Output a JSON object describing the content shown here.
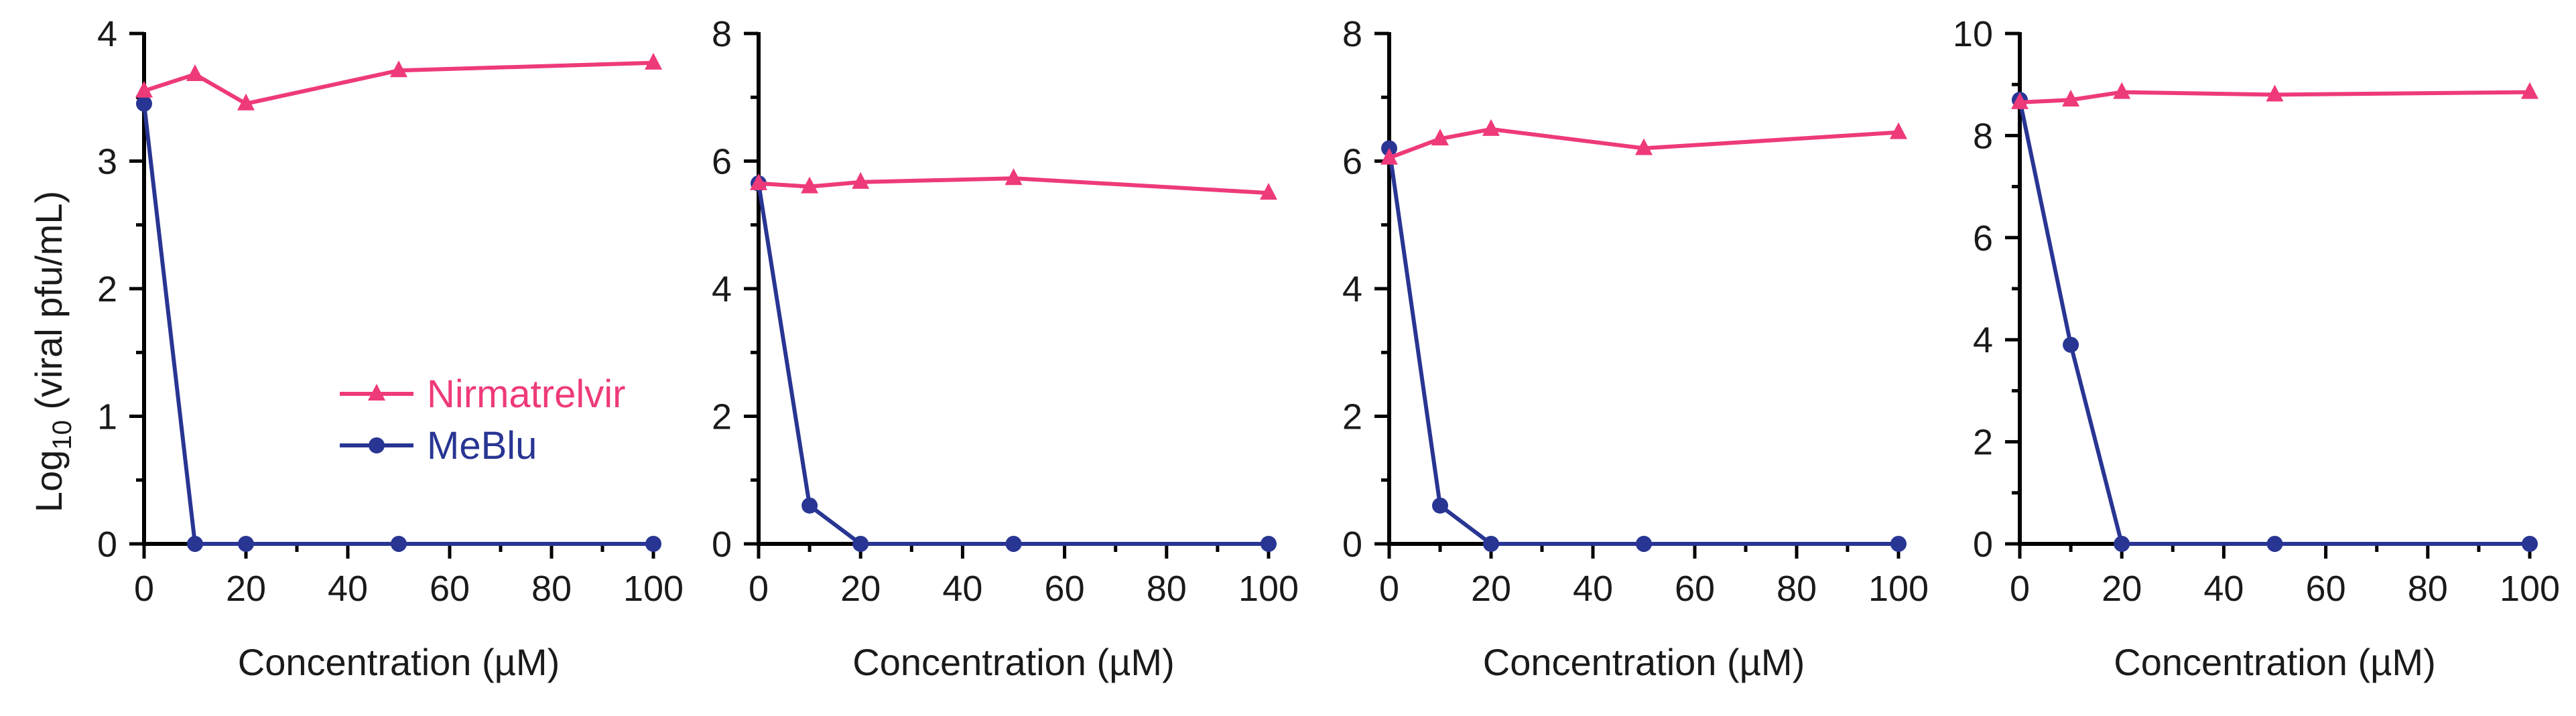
{
  "colors": {
    "nirmatrelvir": "#ee3a7a",
    "mebl": "#283593",
    "axis": "#000000"
  },
  "shared": {
    "ylabel": "Log",
    "ylabel_sub": "10",
    "ylabel_rest": " (viral pfu/mL)",
    "xlabel": "Concentration (µM)",
    "legend": [
      "Nirmatrelvir",
      "MeBlu"
    ]
  },
  "chart_data": [
    {
      "type": "line",
      "xlabel": "Concentration (µM)",
      "ylabel": "Log10 (viral pfu/mL)",
      "xlim": [
        0,
        100
      ],
      "ylim": [
        0,
        4
      ],
      "xticks": [
        0,
        20,
        40,
        60,
        80,
        100
      ],
      "yticks": [
        0,
        1,
        2,
        3,
        4
      ],
      "x": [
        0,
        10,
        20,
        50,
        100
      ],
      "series": [
        {
          "name": "Nirmatrelvir",
          "marker": "triangle",
          "values": [
            3.55,
            3.68,
            3.45,
            3.71,
            3.77
          ]
        },
        {
          "name": "MeBlu",
          "marker": "circle",
          "values": [
            3.45,
            0,
            0,
            0,
            0
          ]
        }
      ]
    },
    {
      "type": "line",
      "xlabel": "Concentration (µM)",
      "xlim": [
        0,
        100
      ],
      "ylim": [
        0,
        8
      ],
      "xticks": [
        0,
        20,
        40,
        60,
        80,
        100
      ],
      "yticks": [
        0,
        2,
        4,
        6,
        8
      ],
      "x": [
        0,
        10,
        20,
        50,
        100
      ],
      "series": [
        {
          "name": "Nirmatrelvir",
          "marker": "triangle",
          "values": [
            5.65,
            5.6,
            5.67,
            5.73,
            5.5
          ]
        },
        {
          "name": "MeBlu",
          "marker": "circle",
          "values": [
            5.65,
            0.6,
            0,
            0,
            0
          ]
        }
      ]
    },
    {
      "type": "line",
      "xlabel": "Concentration (µM)",
      "xlim": [
        0,
        100
      ],
      "ylim": [
        0,
        8
      ],
      "xticks": [
        0,
        20,
        40,
        60,
        80,
        100
      ],
      "yticks": [
        0,
        2,
        4,
        6,
        8
      ],
      "x": [
        0,
        10,
        20,
        50,
        100
      ],
      "series": [
        {
          "name": "Nirmatrelvir",
          "marker": "triangle",
          "values": [
            6.05,
            6.35,
            6.5,
            6.2,
            6.45
          ]
        },
        {
          "name": "MeBlu",
          "marker": "circle",
          "values": [
            6.2,
            0.6,
            0,
            0,
            0
          ]
        }
      ]
    },
    {
      "type": "line",
      "xlabel": "Concentration (µM)",
      "xlim": [
        0,
        100
      ],
      "ylim": [
        0,
        10
      ],
      "xticks": [
        0,
        20,
        40,
        60,
        80,
        100
      ],
      "yticks": [
        0,
        2,
        4,
        6,
        8,
        10
      ],
      "x": [
        0,
        10,
        20,
        50,
        100
      ],
      "series": [
        {
          "name": "Nirmatrelvir",
          "marker": "triangle",
          "values": [
            8.65,
            8.7,
            8.85,
            8.8,
            8.85
          ]
        },
        {
          "name": "MeBlu",
          "marker": "circle",
          "values": [
            8.7,
            3.9,
            0,
            0,
            0
          ]
        }
      ]
    }
  ]
}
